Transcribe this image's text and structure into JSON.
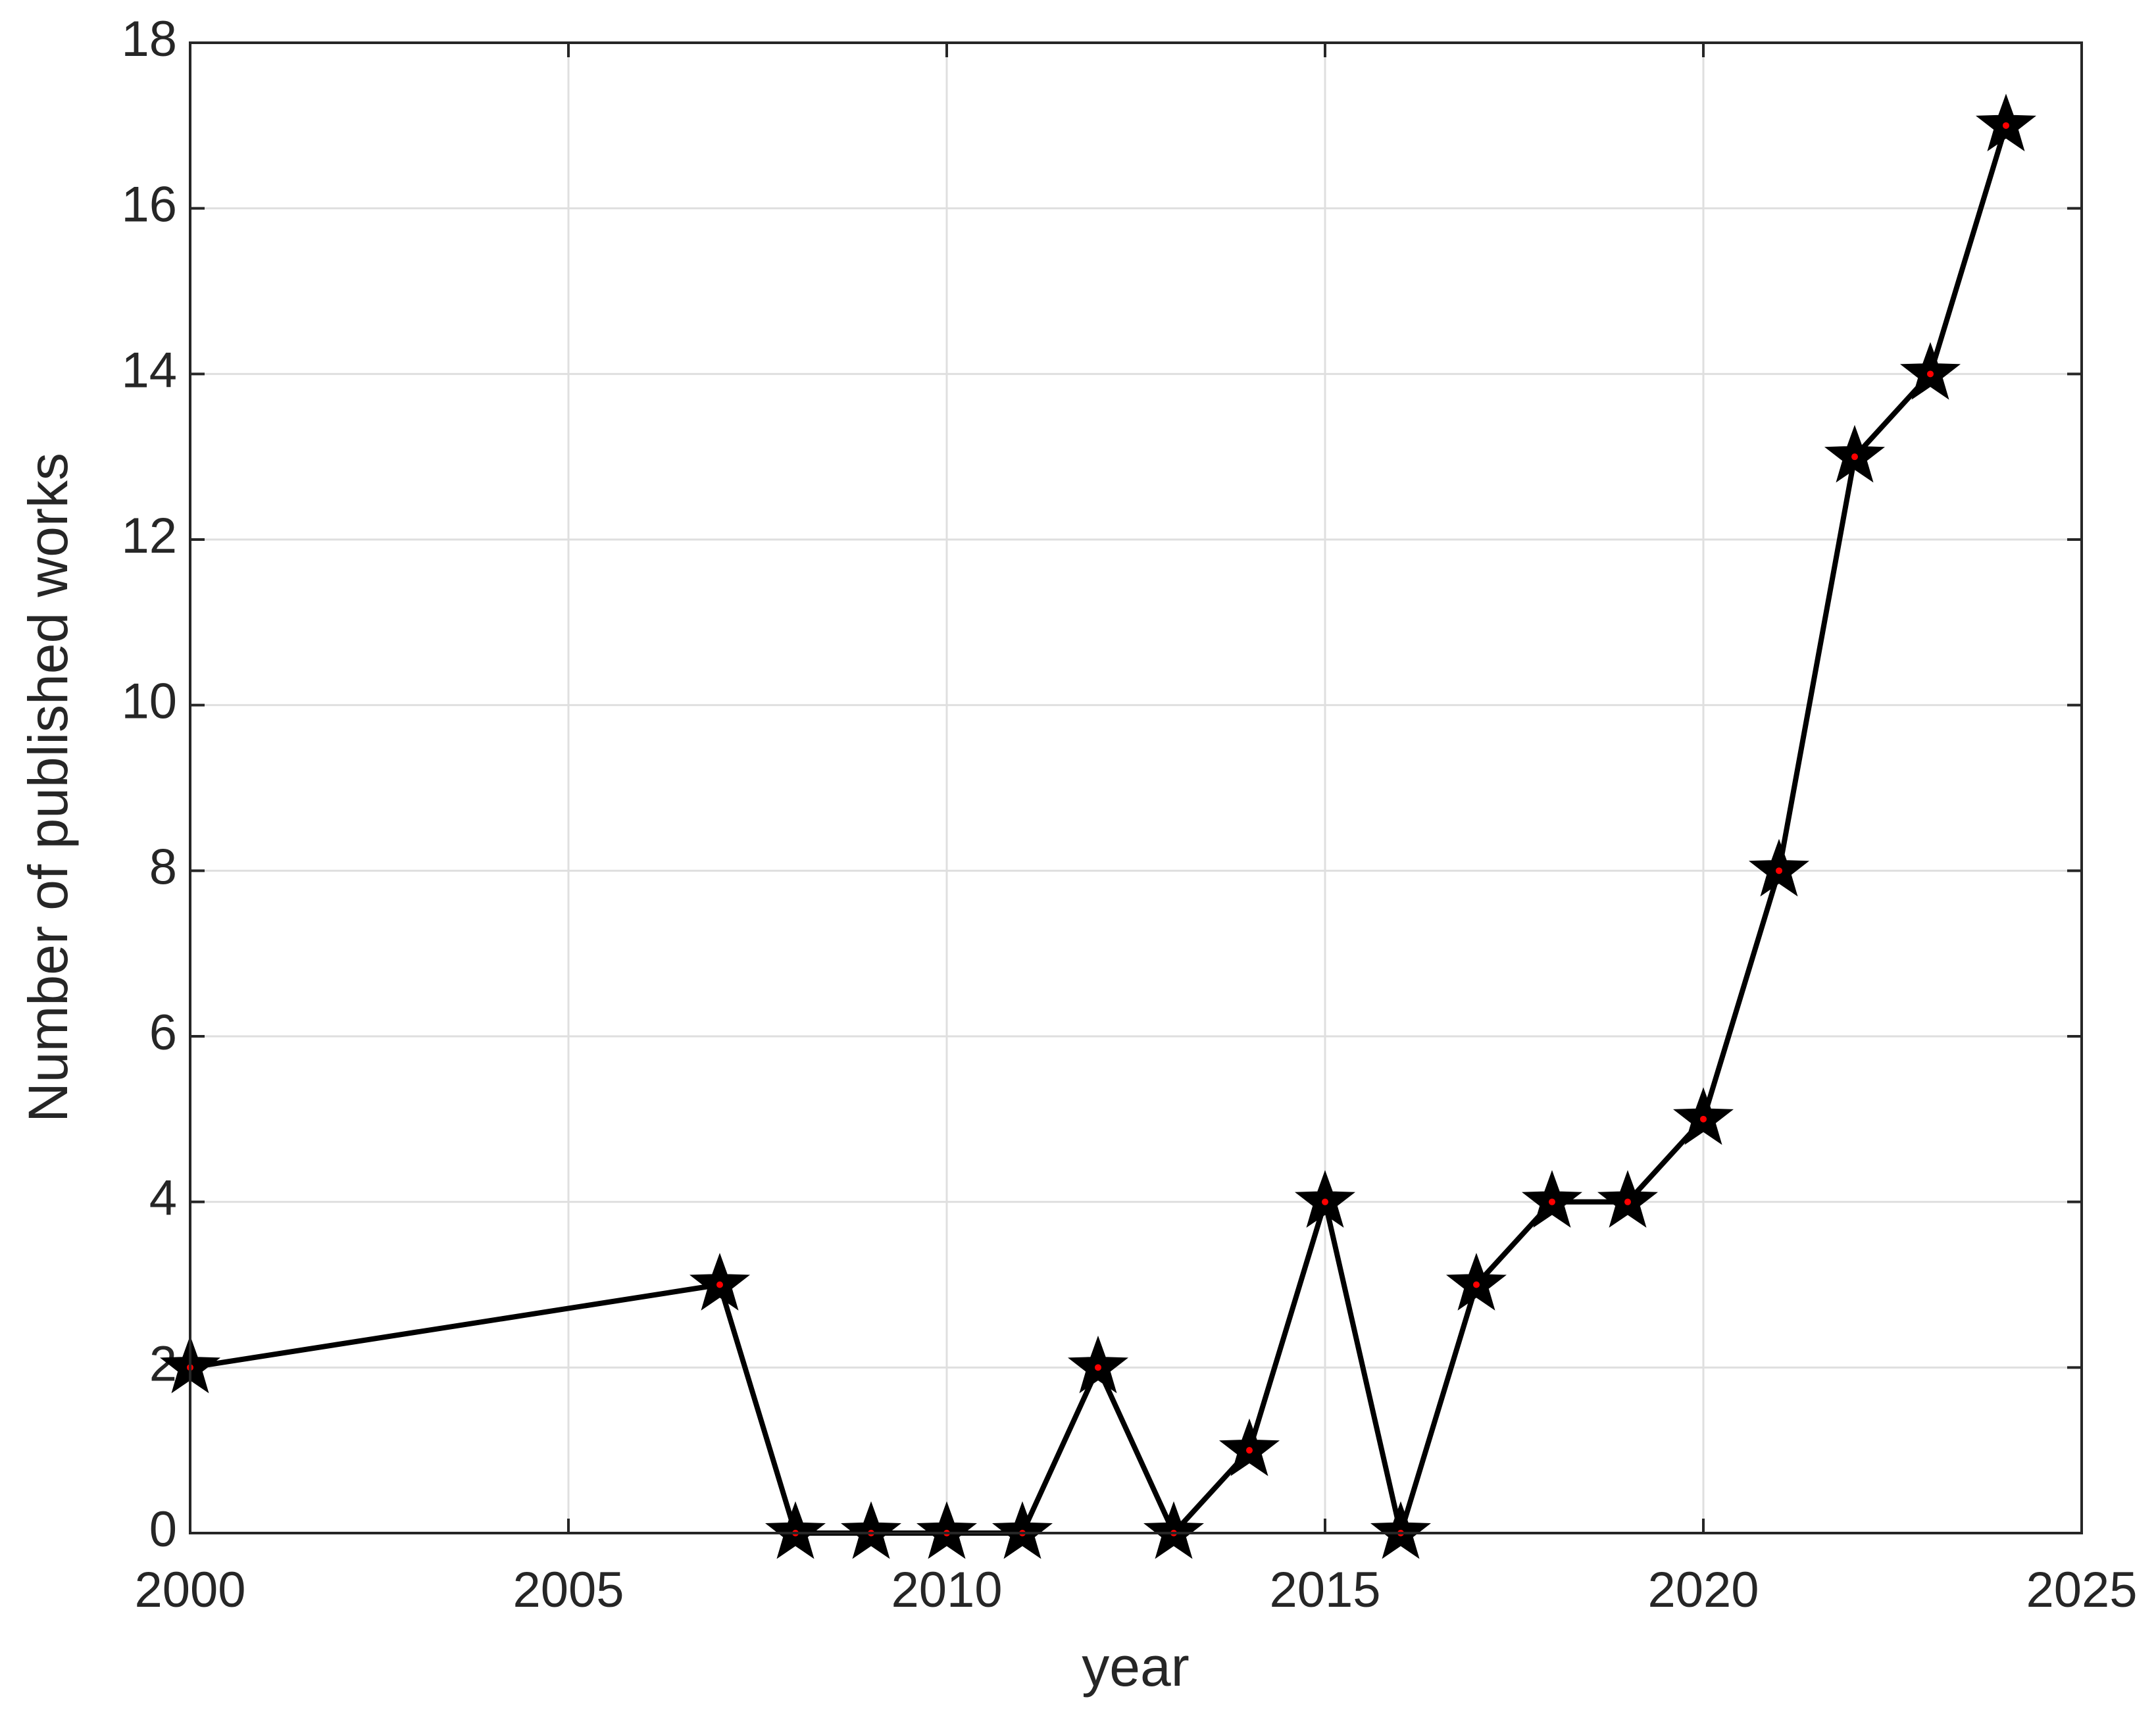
{
  "chart_data": {
    "type": "line",
    "x_label": "year",
    "y_label": "Number of published works",
    "x": [
      2000,
      2007,
      2008,
      2009,
      2010,
      2011,
      2012,
      2013,
      2014,
      2015,
      2016,
      2017,
      2018,
      2019,
      2020,
      2021,
      2022,
      2023,
      2024
    ],
    "series": [
      {
        "color": "#000000",
        "marker": "star",
        "marker_center_color": "#ff0000",
        "values": [
          2,
          3,
          0,
          0,
          0,
          0,
          2,
          0,
          1,
          4,
          0,
          3,
          4,
          4,
          5,
          8,
          13,
          14,
          17
        ]
      }
    ],
    "xlim": [
      2000,
      2025
    ],
    "xticks": [
      2000,
      2005,
      2010,
      2015,
      2020,
      2025
    ],
    "ylim": [
      0,
      18
    ],
    "yticks": [
      0,
      2,
      4,
      6,
      8,
      10,
      12,
      14,
      16,
      18
    ],
    "grid": true
  }
}
